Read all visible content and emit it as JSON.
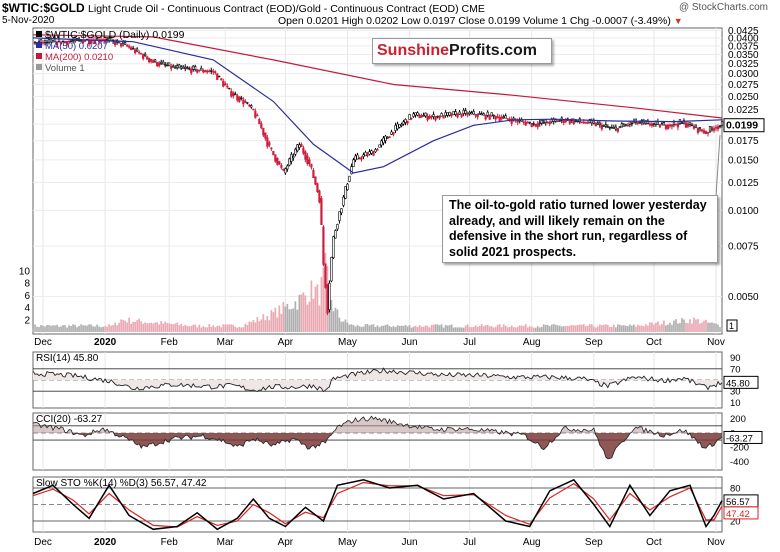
{
  "header": {
    "symbol": "$WTIC:$GOLD",
    "description": "Light Crude Oil - Continuous Contract (EOD)/Gold - Continuous Contract (EOD) CME",
    "date": "5-Nov-2020",
    "ohlc": "Open 0.0201  High 0.0202  Low 0.0197  Close 0.0199  Volume 1  Chg -0.0007 (-3.49%)",
    "change_arrow": "▼",
    "credit": "@ StockCharts.com"
  },
  "logo": {
    "part1": "Sunshine",
    "part2": "Profits.com"
  },
  "callout": "The oil-to-gold ratio turned lower yesterday already, and will likely remain on the defensive in the short run, regardless of solid 2021 prospects.",
  "colors": {
    "up": "#000000",
    "down": "#cc1f3c",
    "ma50": "#2c2ca0",
    "ma200": "#c41a3a",
    "vol_up": "#b0b0b0",
    "vol_down": "#e9aab4",
    "stoch_k": "#000000",
    "stoch_d": "#dd2020",
    "pos_fill": "#b89a9a",
    "neg_fill": "#7a3b38"
  },
  "chart_data": [
    {
      "type": "candlestick",
      "panel": "price",
      "legend": [
        "$WTIC:$GOLD (Daily) 0.0199",
        "MA(50) 0.0207",
        "MA(200) 0.0210",
        "Volume 1"
      ],
      "last_value": "0.0199",
      "y_scale": "log",
      "ylim": [
        0.0037,
        0.0433
      ],
      "y_ticks": [
        "0.0425",
        "0.0400",
        "0.0375",
        "0.0350",
        "0.0325",
        "0.0300",
        "0.0275",
        "0.0250",
        "0.0225",
        "0.0200",
        "0.0175",
        "0.0150",
        "0.0125",
        "0.0100",
        "0.0075",
        "0.0050"
      ],
      "volume_ticks": [
        "10",
        "8",
        "6",
        "4",
        "2"
      ],
      "volume_last": "1",
      "x_labels": [
        "Dec",
        "2020",
        "Feb",
        "Mar",
        "Apr",
        "May",
        "Jun",
        "Jul",
        "Aug",
        "Sep",
        "Oct",
        "Nov"
      ],
      "x_label_days": [
        5,
        36,
        68,
        96,
        126,
        157,
        188,
        218,
        249,
        280,
        310,
        341
      ],
      "close_points": [
        [
          0,
          0.0384
        ],
        [
          35,
          0.0395
        ],
        [
          45,
          0.038
        ],
        [
          60,
          0.033
        ],
        [
          70,
          0.0315
        ],
        [
          90,
          0.0305
        ],
        [
          98,
          0.026
        ],
        [
          105,
          0.024
        ],
        [
          110,
          0.0222
        ],
        [
          118,
          0.0165
        ],
        [
          125,
          0.0135
        ],
        [
          133,
          0.017
        ],
        [
          138,
          0.0145
        ],
        [
          143,
          0.011
        ],
        [
          145,
          0.0065
        ],
        [
          147,
          0.0045
        ],
        [
          150,
          0.008
        ],
        [
          155,
          0.011
        ],
        [
          160,
          0.015
        ],
        [
          170,
          0.016
        ],
        [
          180,
          0.019
        ],
        [
          190,
          0.0215
        ],
        [
          200,
          0.0212
        ],
        [
          215,
          0.0218
        ],
        [
          230,
          0.0213
        ],
        [
          250,
          0.02
        ],
        [
          265,
          0.0207
        ],
        [
          280,
          0.0201
        ],
        [
          290,
          0.0192
        ],
        [
          300,
          0.0203
        ],
        [
          315,
          0.0198
        ],
        [
          325,
          0.0202
        ],
        [
          336,
          0.0187
        ],
        [
          340,
          0.0195
        ],
        [
          344,
          0.0199
        ]
      ],
      "ma50": [
        [
          0,
          0.04
        ],
        [
          50,
          0.0388
        ],
        [
          90,
          0.0335
        ],
        [
          120,
          0.024
        ],
        [
          140,
          0.017
        ],
        [
          160,
          0.0135
        ],
        [
          175,
          0.0142
        ],
        [
          200,
          0.0175
        ],
        [
          220,
          0.0198
        ],
        [
          240,
          0.0207
        ],
        [
          260,
          0.0208
        ],
        [
          290,
          0.0205
        ],
        [
          320,
          0.0204
        ],
        [
          344,
          0.0207
        ]
      ],
      "ma200": [
        [
          0,
          0.041
        ],
        [
          60,
          0.0403
        ],
        [
          120,
          0.0335
        ],
        [
          180,
          0.0275
        ],
        [
          240,
          0.0252
        ],
        [
          300,
          0.0228
        ],
        [
          344,
          0.021
        ]
      ],
      "volume": [
        [
          0,
          1
        ],
        [
          40,
          1
        ],
        [
          44,
          2
        ],
        [
          80,
          1
        ],
        [
          104,
          1
        ],
        [
          120,
          3
        ],
        [
          132,
          5
        ],
        [
          136,
          6
        ],
        [
          140,
          7
        ],
        [
          143,
          6
        ],
        [
          146,
          10
        ],
        [
          148,
          7
        ],
        [
          150,
          4
        ],
        [
          154,
          2
        ],
        [
          160,
          1
        ],
        [
          250,
          1
        ],
        [
          300,
          1
        ],
        [
          330,
          2
        ],
        [
          344,
          1
        ]
      ]
    },
    {
      "type": "line",
      "panel": "rsi",
      "name": "RSI(14) 45.80",
      "last_value": "45.80",
      "ylim": [
        0,
        100
      ],
      "y_ticks": [
        "90",
        "70",
        "50",
        "30",
        "10"
      ],
      "ref_lines": [
        70,
        30
      ],
      "points": [
        [
          0,
          62
        ],
        [
          20,
          58
        ],
        [
          40,
          47
        ],
        [
          50,
          35
        ],
        [
          70,
          42
        ],
        [
          90,
          38
        ],
        [
          100,
          40
        ],
        [
          110,
          32
        ],
        [
          120,
          38
        ],
        [
          130,
          37
        ],
        [
          140,
          40
        ],
        [
          146,
          30
        ],
        [
          150,
          52
        ],
        [
          160,
          60
        ],
        [
          175,
          67
        ],
        [
          190,
          63
        ],
        [
          205,
          59
        ],
        [
          225,
          58
        ],
        [
          240,
          55
        ],
        [
          260,
          55
        ],
        [
          275,
          52
        ],
        [
          287,
          39
        ],
        [
          300,
          55
        ],
        [
          315,
          49
        ],
        [
          325,
          53
        ],
        [
          336,
          36
        ],
        [
          344,
          46
        ]
      ]
    },
    {
      "type": "area",
      "panel": "cci",
      "name": "CCI(20) -63.27",
      "last_value": "-63.27",
      "ylim": [
        -520,
        280
      ],
      "y_ticks": [
        "200",
        "0",
        "-200",
        "-400"
      ],
      "ref_lines": [
        100,
        -100
      ],
      "points": [
        [
          0,
          120
        ],
        [
          15,
          50
        ],
        [
          25,
          -40
        ],
        [
          35,
          60
        ],
        [
          45,
          -60
        ],
        [
          55,
          -200
        ],
        [
          70,
          -80
        ],
        [
          85,
          -40
        ],
        [
          95,
          -110
        ],
        [
          102,
          -200
        ],
        [
          110,
          -80
        ],
        [
          120,
          -180
        ],
        [
          130,
          -80
        ],
        [
          138,
          -210
        ],
        [
          146,
          -140
        ],
        [
          152,
          80
        ],
        [
          160,
          180
        ],
        [
          170,
          210
        ],
        [
          185,
          120
        ],
        [
          200,
          50
        ],
        [
          215,
          60
        ],
        [
          230,
          20
        ],
        [
          245,
          -30
        ],
        [
          255,
          -210
        ],
        [
          265,
          60
        ],
        [
          280,
          40
        ],
        [
          287,
          -390
        ],
        [
          300,
          80
        ],
        [
          315,
          -30
        ],
        [
          325,
          40
        ],
        [
          336,
          -220
        ],
        [
          344,
          -63
        ]
      ]
    },
    {
      "type": "line",
      "panel": "stochastic",
      "name": "Slow STO %K(14) %D(3) 56.57, 47.42",
      "k_label": "56.57",
      "d_label": "47.42",
      "ylim": [
        0,
        100
      ],
      "y_ticks": [
        "80",
        "50",
        "20"
      ],
      "ref_lines": [
        80,
        20
      ],
      "k": [
        [
          0,
          70
        ],
        [
          10,
          85
        ],
        [
          20,
          50
        ],
        [
          28,
          25
        ],
        [
          38,
          85
        ],
        [
          48,
          30
        ],
        [
          60,
          5
        ],
        [
          72,
          10
        ],
        [
          82,
          35
        ],
        [
          92,
          5
        ],
        [
          102,
          25
        ],
        [
          110,
          60
        ],
        [
          118,
          25
        ],
        [
          126,
          10
        ],
        [
          136,
          45
        ],
        [
          145,
          20
        ],
        [
          152,
          85
        ],
        [
          165,
          95
        ],
        [
          178,
          80
        ],
        [
          192,
          85
        ],
        [
          205,
          60
        ],
        [
          220,
          70
        ],
        [
          236,
          20
        ],
        [
          248,
          10
        ],
        [
          258,
          75
        ],
        [
          270,
          95
        ],
        [
          280,
          50
        ],
        [
          288,
          10
        ],
        [
          298,
          85
        ],
        [
          308,
          30
        ],
        [
          318,
          75
        ],
        [
          328,
          85
        ],
        [
          336,
          10
        ],
        [
          340,
          30
        ],
        [
          344,
          57
        ]
      ],
      "d": [
        [
          0,
          66
        ],
        [
          10,
          78
        ],
        [
          20,
          58
        ],
        [
          28,
          33
        ],
        [
          38,
          70
        ],
        [
          48,
          40
        ],
        [
          60,
          12
        ],
        [
          72,
          9
        ],
        [
          82,
          28
        ],
        [
          92,
          12
        ],
        [
          102,
          20
        ],
        [
          110,
          50
        ],
        [
          118,
          35
        ],
        [
          126,
          15
        ],
        [
          136,
          36
        ],
        [
          145,
          26
        ],
        [
          152,
          70
        ],
        [
          165,
          90
        ],
        [
          178,
          84
        ],
        [
          192,
          84
        ],
        [
          205,
          66
        ],
        [
          220,
          68
        ],
        [
          236,
          30
        ],
        [
          248,
          14
        ],
        [
          258,
          62
        ],
        [
          270,
          88
        ],
        [
          280,
          60
        ],
        [
          288,
          22
        ],
        [
          298,
          70
        ],
        [
          308,
          40
        ],
        [
          318,
          64
        ],
        [
          328,
          80
        ],
        [
          336,
          22
        ],
        [
          340,
          22
        ],
        [
          344,
          47
        ]
      ]
    }
  ]
}
